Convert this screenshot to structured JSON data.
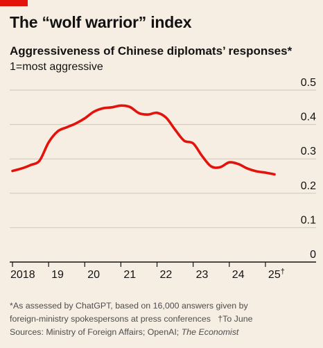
{
  "header": {
    "title": "The “wolf warrior” index",
    "subtitle": "Aggressiveness of Chinese diplomats’ responses*",
    "unit_note": "1=most aggressive"
  },
  "footnotes": {
    "line1": "*As assessed by ChatGPT, based on 16,000 answers given by",
    "line2": "foreign-ministry spokespersons at press conferences",
    "dagger": "†To June",
    "sources_prefix": "Sources: Ministry of Foreign Affairs; OpenAI; ",
    "sources_italic": "The Economist"
  },
  "colors": {
    "background": "#f6ede3",
    "accent": "#e3120b",
    "line": "#e3120b",
    "grid": "#cfc6bc",
    "axis": "#121212"
  },
  "chart_data": {
    "type": "line",
    "title": "The “wolf warrior” index",
    "subtitle": "Aggressiveness of Chinese diplomats’ responses*",
    "ylabel": "1=most aggressive",
    "ylim": [
      0,
      0.5
    ],
    "yticks": [
      0,
      0.1,
      0.2,
      0.3,
      0.4,
      0.5
    ],
    "ytick_labels": [
      "0",
      "0.1",
      "0.2",
      "0.3",
      "0.4",
      "0.5"
    ],
    "xlim": [
      2018,
      2025.5
    ],
    "xticks": [
      2018,
      2019,
      2020,
      2021,
      2022,
      2023,
      2024,
      2025
    ],
    "xtick_labels": [
      "2018",
      "19",
      "20",
      "21",
      "22",
      "23",
      "24",
      "25†"
    ],
    "grid": true,
    "legend": "none",
    "series": [
      {
        "x": [
          2018.0,
          2018.25,
          2018.5,
          2018.75,
          2019.0,
          2019.25,
          2019.5,
          2019.75,
          2020.0,
          2020.25,
          2020.5,
          2020.75,
          2021.0,
          2021.25,
          2021.5,
          2021.75,
          2022.0,
          2022.25,
          2022.5,
          2022.75,
          2023.0,
          2023.25,
          2023.5,
          2023.75,
          2024.0,
          2024.25,
          2024.5,
          2024.75,
          2025.0,
          2025.25
        ],
        "values": [
          0.265,
          0.272,
          0.282,
          0.295,
          0.348,
          0.38,
          0.392,
          0.403,
          0.418,
          0.437,
          0.447,
          0.45,
          0.455,
          0.451,
          0.433,
          0.429,
          0.434,
          0.42,
          0.385,
          0.353,
          0.345,
          0.308,
          0.278,
          0.276,
          0.29,
          0.285,
          0.272,
          0.264,
          0.26,
          0.255
        ]
      }
    ]
  }
}
